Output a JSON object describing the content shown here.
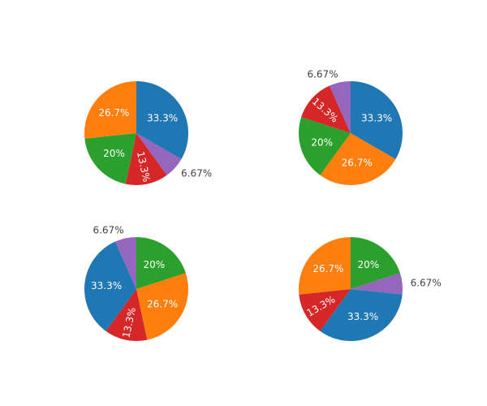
{
  "colors": {
    "background": "#ffffff",
    "label_inside": "#ffffff",
    "label_outside": "#444444"
  },
  "chart_data": [
    {
      "type": "pie",
      "slices": [
        {
          "label": "33.3%",
          "value": 5,
          "color": "#1f77b4"
        },
        {
          "label": "6.67%",
          "value": 1,
          "color": "#9467bd"
        },
        {
          "label": "13.3%",
          "value": 2,
          "color": "#d62728"
        },
        {
          "label": "20%",
          "value": 3,
          "color": "#2ca02c"
        },
        {
          "label": "26.7%",
          "value": 4,
          "color": "#ff7f0e"
        }
      ]
    },
    {
      "type": "pie",
      "slices": [
        {
          "label": "33.3%",
          "value": 5,
          "color": "#1f77b4"
        },
        {
          "label": "26.7%",
          "value": 4,
          "color": "#ff7f0e"
        },
        {
          "label": "20%",
          "value": 3,
          "color": "#2ca02c"
        },
        {
          "label": "13.3%",
          "value": 2,
          "color": "#d62728"
        },
        {
          "label": "6.67%",
          "value": 1,
          "color": "#9467bd"
        }
      ]
    },
    {
      "type": "pie",
      "slices": [
        {
          "label": "20%",
          "value": 3,
          "color": "#2ca02c"
        },
        {
          "label": "26.7%",
          "value": 4,
          "color": "#ff7f0e"
        },
        {
          "label": "13.3%",
          "value": 2,
          "color": "#d62728"
        },
        {
          "label": "33.3%",
          "value": 5,
          "color": "#1f77b4"
        },
        {
          "label": "6.67%",
          "value": 1,
          "color": "#9467bd"
        }
      ]
    },
    {
      "type": "pie",
      "slices": [
        {
          "label": "20%",
          "value": 3,
          "color": "#2ca02c"
        },
        {
          "label": "6.67%",
          "value": 1,
          "color": "#9467bd"
        },
        {
          "label": "33.3%",
          "value": 5,
          "color": "#1f77b4"
        },
        {
          "label": "13.3%",
          "value": 2,
          "color": "#d62728"
        },
        {
          "label": "26.7%",
          "value": 4,
          "color": "#ff7f0e"
        }
      ]
    }
  ]
}
